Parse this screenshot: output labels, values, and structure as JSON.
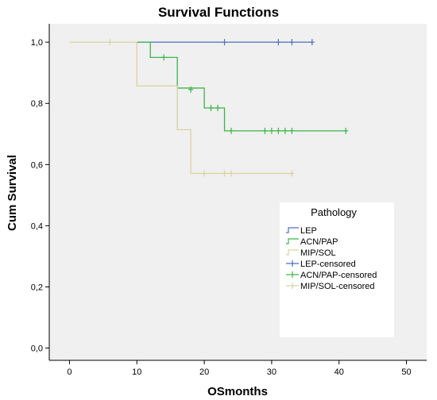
{
  "chart_data": {
    "type": "line",
    "title": "Survival Functions",
    "xlabel": "OSmonths",
    "ylabel": "Cum Survival",
    "xlim": [
      -3,
      53
    ],
    "ylim": [
      -0.04,
      1.06
    ],
    "x_ticks": [
      0,
      10,
      20,
      30,
      40,
      50
    ],
    "x_tick_labels": [
      "0",
      "10",
      "20",
      "30",
      "40",
      "50"
    ],
    "y_ticks": [
      0.0,
      0.2,
      0.4,
      0.6,
      0.8,
      1.0
    ],
    "y_tick_labels": [
      "0,0",
      "0,2",
      "0,4",
      "0,6",
      "0,8",
      "1,0"
    ],
    "grid": false,
    "plot_background": "#f0f0f0",
    "legend": {
      "title": "Pathology",
      "placement": "right-inside",
      "entries": [
        "LEP",
        "ACN/PAP",
        "MIP/SOL",
        "LEP-censored",
        "ACN/PAP-censored",
        "MIP/SOL-censored"
      ]
    },
    "series": [
      {
        "name": "LEP",
        "color": "#4a6fc1",
        "steps": [
          [
            10,
            1.0
          ],
          [
            36,
            1.0
          ]
        ],
        "censored": [
          [
            23,
            1.0
          ],
          [
            31,
            1.0
          ],
          [
            33,
            1.0
          ],
          [
            36,
            1.0
          ]
        ]
      },
      {
        "name": "ACN/PAP",
        "color": "#3cb44a",
        "steps": [
          [
            10,
            1.0
          ],
          [
            12,
            0.95
          ],
          [
            16,
            0.85
          ],
          [
            20,
            0.785
          ],
          [
            23,
            0.71
          ],
          [
            41,
            0.71
          ]
        ],
        "censored": [
          [
            14,
            0.95
          ],
          [
            18,
            0.845
          ],
          [
            21,
            0.785
          ],
          [
            22,
            0.785
          ],
          [
            24,
            0.71
          ],
          [
            29,
            0.71
          ],
          [
            30,
            0.71
          ],
          [
            31,
            0.71
          ],
          [
            32,
            0.71
          ],
          [
            33,
            0.71
          ],
          [
            41,
            0.71
          ]
        ]
      },
      {
        "name": "MIP/SOL",
        "color": "#d9d2a0",
        "steps": [
          [
            0,
            1.0
          ],
          [
            10,
            0.857
          ],
          [
            16,
            0.714
          ],
          [
            18,
            0.571
          ],
          [
            33,
            0.571
          ]
        ],
        "censored": [
          [
            6,
            1.0
          ],
          [
            20,
            0.571
          ],
          [
            23,
            0.571
          ],
          [
            24,
            0.571
          ],
          [
            33,
            0.571
          ]
        ]
      }
    ]
  }
}
